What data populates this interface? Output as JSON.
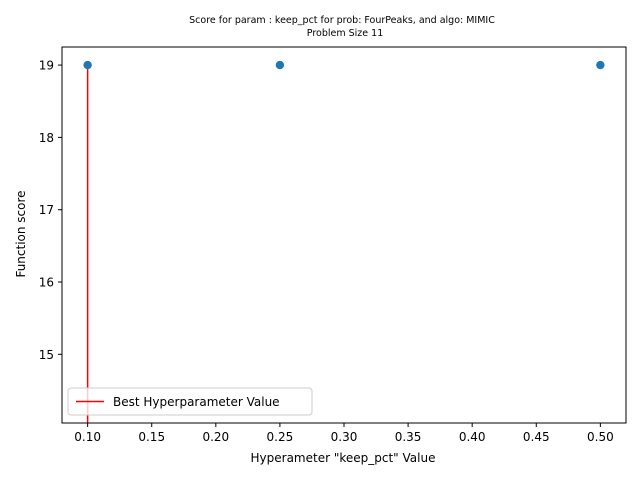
{
  "chart_data": {
    "type": "scatter",
    "title": "Score for param : keep_pct for prob: FourPeaks, and algo: MIMIC",
    "subtitle": "Problem Size 11",
    "xlabel": "Hyperameter \"keep_pct\" Value",
    "ylabel": "Function score",
    "xlim": [
      0.08,
      0.52
    ],
    "ylim": [
      14.05,
      19.25
    ],
    "xticks": [
      0.1,
      0.15,
      0.2,
      0.25,
      0.3,
      0.35,
      0.4,
      0.45,
      0.5
    ],
    "xtick_labels": [
      "0.10",
      "0.15",
      "0.20",
      "0.25",
      "0.30",
      "0.35",
      "0.40",
      "0.45",
      "0.50"
    ],
    "yticks": [
      15,
      16,
      17,
      18,
      19
    ],
    "ytick_labels": [
      "15",
      "16",
      "17",
      "18",
      "19"
    ],
    "grid": false,
    "legend_position": "lower-left",
    "series": [
      {
        "type": "scatter",
        "color": "#1f77b4",
        "x": [
          0.1,
          0.25,
          0.5
        ],
        "y": [
          19,
          19,
          19
        ]
      },
      {
        "type": "vline",
        "name": "Best Hyperparameter Value",
        "color": "#ff0000",
        "x": 0.1,
        "y_range": [
          14.05,
          19
        ]
      }
    ]
  }
}
